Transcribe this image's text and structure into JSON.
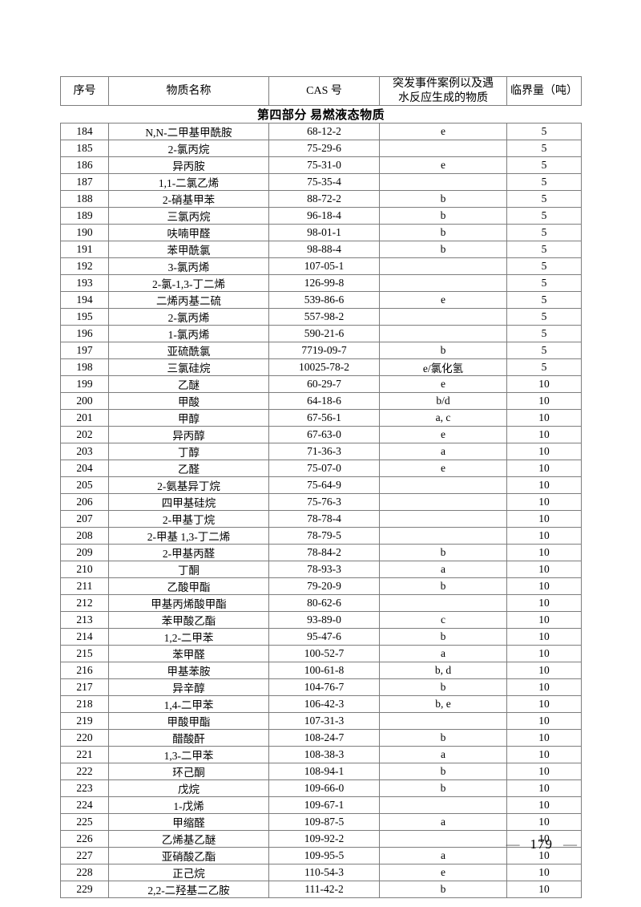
{
  "table": {
    "columns": [
      "序号",
      "物质名称",
      "CAS 号",
      "突发事件案例以及遇水反应生成的物质",
      "临界量（吨）"
    ],
    "section_title": "第四部分 易燃液态物质",
    "rows": [
      {
        "no": "184",
        "name": "N,N-二甲基甲酰胺",
        "cas": "68-12-2",
        "note": "e",
        "qty": "5"
      },
      {
        "no": "185",
        "name": "2-氯丙烷",
        "cas": "75-29-6",
        "note": "",
        "qty": "5"
      },
      {
        "no": "186",
        "name": "异丙胺",
        "cas": "75-31-0",
        "note": "e",
        "qty": "5"
      },
      {
        "no": "187",
        "name": "1,1-二氯乙烯",
        "cas": "75-35-4",
        "note": "",
        "qty": "5"
      },
      {
        "no": "188",
        "name": "2-硝基甲苯",
        "cas": "88-72-2",
        "note": "b",
        "qty": "5"
      },
      {
        "no": "189",
        "name": "三氯丙烷",
        "cas": "96-18-4",
        "note": "b",
        "qty": "5"
      },
      {
        "no": "190",
        "name": "呋喃甲醛",
        "cas": "98-01-1",
        "note": "b",
        "qty": "5"
      },
      {
        "no": "191",
        "name": "苯甲酰氯",
        "cas": "98-88-4",
        "note": "b",
        "qty": "5"
      },
      {
        "no": "192",
        "name": "3-氯丙烯",
        "cas": "107-05-1",
        "note": "",
        "qty": "5"
      },
      {
        "no": "193",
        "name": "2-氯-1,3-丁二烯",
        "cas": "126-99-8",
        "note": "",
        "qty": "5"
      },
      {
        "no": "194",
        "name": "二烯丙基二硫",
        "cas": "539-86-6",
        "note": "e",
        "qty": "5"
      },
      {
        "no": "195",
        "name": "2-氯丙烯",
        "cas": "557-98-2",
        "note": "",
        "qty": "5"
      },
      {
        "no": "196",
        "name": "1-氯丙烯",
        "cas": "590-21-6",
        "note": "",
        "qty": "5"
      },
      {
        "no": "197",
        "name": "亚硫酰氯",
        "cas": "7719-09-7",
        "note": "b",
        "qty": "5"
      },
      {
        "no": "198",
        "name": "三氯硅烷",
        "cas": "10025-78-2",
        "note": "e/氯化氢",
        "qty": "5"
      },
      {
        "no": "199",
        "name": "乙醚",
        "cas": "60-29-7",
        "note": "e",
        "qty": "10"
      },
      {
        "no": "200",
        "name": "甲酸",
        "cas": "64-18-6",
        "note": "b/d",
        "qty": "10"
      },
      {
        "no": "201",
        "name": "甲醇",
        "cas": "67-56-1",
        "note": "a, c",
        "qty": "10"
      },
      {
        "no": "202",
        "name": "异丙醇",
        "cas": "67-63-0",
        "note": "e",
        "qty": "10"
      },
      {
        "no": "203",
        "name": "丁醇",
        "cas": "71-36-3",
        "note": "a",
        "qty": "10"
      },
      {
        "no": "204",
        "name": "乙醛",
        "cas": "75-07-0",
        "note": "e",
        "qty": "10"
      },
      {
        "no": "205",
        "name": "2-氨基异丁烷",
        "cas": "75-64-9",
        "note": "",
        "qty": "10"
      },
      {
        "no": "206",
        "name": "四甲基硅烷",
        "cas": "75-76-3",
        "note": "",
        "qty": "10"
      },
      {
        "no": "207",
        "name": "2-甲基丁烷",
        "cas": "78-78-4",
        "note": "",
        "qty": "10"
      },
      {
        "no": "208",
        "name": "2-甲基 1,3-丁二烯",
        "cas": "78-79-5",
        "note": "",
        "qty": "10"
      },
      {
        "no": "209",
        "name": "2-甲基丙醛",
        "cas": "78-84-2",
        "note": "b",
        "qty": "10"
      },
      {
        "no": "210",
        "name": "丁酮",
        "cas": "78-93-3",
        "note": "a",
        "qty": "10"
      },
      {
        "no": "211",
        "name": "乙酸甲酯",
        "cas": "79-20-9",
        "note": "b",
        "qty": "10"
      },
      {
        "no": "212",
        "name": "甲基丙烯酸甲酯",
        "cas": "80-62-6",
        "note": "",
        "qty": "10"
      },
      {
        "no": "213",
        "name": "苯甲酸乙酯",
        "cas": "93-89-0",
        "note": "c",
        "qty": "10"
      },
      {
        "no": "214",
        "name": "1,2-二甲苯",
        "cas": "95-47-6",
        "note": "b",
        "qty": "10"
      },
      {
        "no": "215",
        "name": "苯甲醛",
        "cas": "100-52-7",
        "note": "a",
        "qty": "10"
      },
      {
        "no": "216",
        "name": "甲基苯胺",
        "cas": "100-61-8",
        "note": "b, d",
        "qty": "10"
      },
      {
        "no": "217",
        "name": "异辛醇",
        "cas": "104-76-7",
        "note": "b",
        "qty": "10"
      },
      {
        "no": "218",
        "name": "1,4-二甲苯",
        "cas": "106-42-3",
        "note": "b, e",
        "qty": "10"
      },
      {
        "no": "219",
        "name": "甲酸甲酯",
        "cas": "107-31-3",
        "note": "",
        "qty": "10"
      },
      {
        "no": "220",
        "name": "醋酸酐",
        "cas": "108-24-7",
        "note": "b",
        "qty": "10"
      },
      {
        "no": "221",
        "name": "1,3-二甲苯",
        "cas": "108-38-3",
        "note": "a",
        "qty": "10"
      },
      {
        "no": "222",
        "name": "环己酮",
        "cas": "108-94-1",
        "note": "b",
        "qty": "10"
      },
      {
        "no": "223",
        "name": "戊烷",
        "cas": "109-66-0",
        "note": "b",
        "qty": "10"
      },
      {
        "no": "224",
        "name": "1-戊烯",
        "cas": "109-67-1",
        "note": "",
        "qty": "10"
      },
      {
        "no": "225",
        "name": "甲缩醛",
        "cas": "109-87-5",
        "note": "a",
        "qty": "10"
      },
      {
        "no": "226",
        "name": "乙烯基乙醚",
        "cas": "109-92-2",
        "note": "",
        "qty": "10"
      },
      {
        "no": "227",
        "name": "亚硝酸乙酯",
        "cas": "109-95-5",
        "note": "a",
        "qty": "10"
      },
      {
        "no": "228",
        "name": "正己烷",
        "cas": "110-54-3",
        "note": "e",
        "qty": "10"
      },
      {
        "no": "229",
        "name": "2,2-二羟基二乙胺",
        "cas": "111-42-2",
        "note": "b",
        "qty": "10"
      }
    ]
  },
  "footer": {
    "dash": "—",
    "page_number": "179"
  }
}
